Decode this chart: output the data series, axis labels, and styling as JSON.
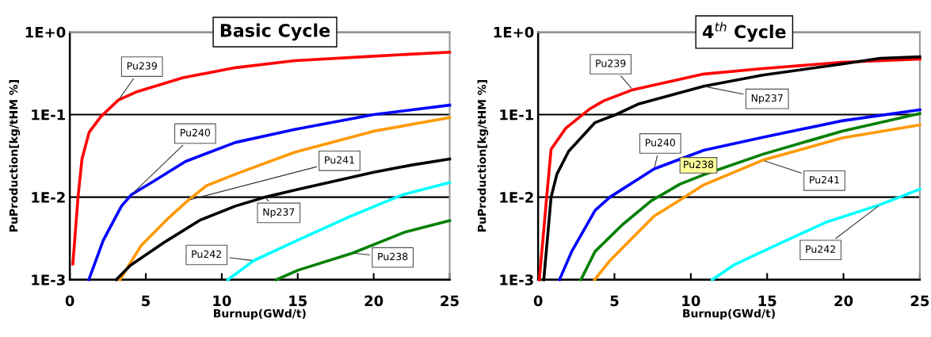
{
  "chart_data": [
    {
      "type": "line",
      "title": "Basic Cycle",
      "xlabel": "Burnup(GWd/t)",
      "ylabel": "PuProduction[kg/tHM %]",
      "log": "y",
      "grid": "y",
      "legend": false,
      "marker": "none",
      "line_style": "solid",
      "xlim": [
        0,
        25
      ],
      "xticks": [
        0,
        5,
        10,
        15,
        20,
        25
      ],
      "ylim": [
        0.001,
        1
      ],
      "yticks": [
        {
          "value": 0.001,
          "label": "1E-3"
        },
        {
          "value": 0.01,
          "label": "1E-2"
        },
        {
          "value": 0.1,
          "label": "1E-1"
        },
        {
          "value": 1,
          "label": "1E+0"
        }
      ],
      "series": [
        {
          "name": "Pu239",
          "color": "#ff0000",
          "x": [
            0.2,
            0.54,
            0.8,
            1.27,
            2.05,
            3.2,
            4.45,
            7.45,
            10.9,
            14.8,
            20,
            25
          ],
          "values": [
            0.00155,
            0.01,
            0.029,
            0.061,
            0.095,
            0.15,
            0.19,
            0.28,
            0.37,
            0.45,
            0.51,
            0.57
          ]
        },
        {
          "name": "Pu240",
          "color": "#0000ff",
          "x": [
            1.25,
            2.2,
            3.4,
            4.05,
            5.5,
            7.6,
            10.9,
            14.8,
            20,
            25
          ],
          "values": [
            0.001,
            0.003,
            0.0078,
            0.0107,
            0.0155,
            0.027,
            0.046,
            0.066,
            0.1,
            0.13
          ]
        },
        {
          "name": "Pu241",
          "color": "#ff9900",
          "x": [
            3.3,
            4.7,
            6.5,
            7.8,
            9,
            10.9,
            14.8,
            20,
            25
          ],
          "values": [
            0.001,
            0.0026,
            0.0056,
            0.0092,
            0.0138,
            0.019,
            0.035,
            0.063,
            0.092
          ]
        },
        {
          "name": "Np237",
          "color": "#000000",
          "x": [
            3.05,
            4,
            6.3,
            8.6,
            10.9,
            12.85,
            14.8,
            20,
            22.5,
            25
          ],
          "values": [
            0.001,
            0.0015,
            0.0029,
            0.0053,
            0.0078,
            0.01,
            0.0122,
            0.02,
            0.0245,
            0.029
          ]
        },
        {
          "name": "Pu242",
          "color": "#00ffff",
          "x": [
            10.4,
            12.1,
            14.8,
            18.6,
            21.9,
            25
          ],
          "values": [
            0.001,
            0.0017,
            0.0029,
            0.006,
            0.0107,
            0.015
          ]
        },
        {
          "name": "Pu238",
          "color": "#008000",
          "x": [
            13.6,
            15,
            18.6,
            22.1,
            25
          ],
          "values": [
            0.001,
            0.0013,
            0.0021,
            0.0038,
            0.0052
          ]
        }
      ]
    },
    {
      "type": "line",
      "title": "4$^{th}$ Cycle",
      "xlabel": "Burnup(GWd/t)",
      "ylabel": "PuProduction[kg/tHM %]",
      "log": "y",
      "grid": "y",
      "legend": false,
      "marker": "none",
      "line_style": "solid",
      "xlim": [
        0,
        25
      ],
      "xticks": [
        0,
        5,
        10,
        15,
        20,
        25
      ],
      "ylim": [
        0.001,
        1
      ],
      "yticks": [
        {
          "value": 0.001,
          "label": "1E-3"
        },
        {
          "value": 0.01,
          "label": "1E-2"
        },
        {
          "value": 0.1,
          "label": "1E-1"
        },
        {
          "value": 1,
          "label": "1E+0"
        }
      ],
      "series": [
        {
          "name": "Pu239",
          "color": "#ff0000",
          "x": [
            0.08,
            0.56,
            0.85,
            1.8,
            3.35,
            4.3,
            6.2,
            10.85,
            14.7,
            19.9,
            25
          ],
          "values": [
            0.001,
            0.01,
            0.038,
            0.068,
            0.116,
            0.147,
            0.2,
            0.31,
            0.36,
            0.43,
            0.47
          ]
        },
        {
          "name": "Np237",
          "color": "#000000",
          "x": [
            0.37,
            0.85,
            1.23,
            2.0,
            3.73,
            5.1,
            6.6,
            10.85,
            14.7,
            19.9,
            22.4,
            25
          ],
          "values": [
            0.001,
            0.01,
            0.019,
            0.036,
            0.08,
            0.1,
            0.135,
            0.22,
            0.3,
            0.41,
            0.48,
            0.5
          ]
        },
        {
          "name": "Pu240",
          "color": "#0000ff",
          "x": [
            1.4,
            2.2,
            3.73,
            4.7,
            7.6,
            10.85,
            14.7,
            19.9,
            25
          ],
          "values": [
            0.001,
            0.0022,
            0.0069,
            0.01,
            0.022,
            0.037,
            0.053,
            0.084,
            0.114
          ]
        },
        {
          "name": "Pu238",
          "color": "#008000",
          "x": [
            2.8,
            3.73,
            5.5,
            7.4,
            9.3,
            10.85,
            14.7,
            19.9,
            25
          ],
          "values": [
            0.001,
            0.0022,
            0.0046,
            0.009,
            0.0144,
            0.0187,
            0.033,
            0.063,
            0.103
          ]
        },
        {
          "name": "Pu241",
          "color": "#ff9900",
          "x": [
            3.7,
            4.7,
            7.6,
            8.9,
            10.85,
            14.7,
            19.9,
            25
          ],
          "values": [
            0.001,
            0.0017,
            0.0059,
            0.0083,
            0.0141,
            0.028,
            0.052,
            0.075
          ]
        },
        {
          "name": "Pu242",
          "color": "#00ffff",
          "x": [
            11.4,
            12.8,
            14.7,
            18.9,
            22.4,
            25
          ],
          "values": [
            0.001,
            0.0015,
            0.0022,
            0.005,
            0.0081,
            0.0125
          ]
        }
      ]
    }
  ]
}
